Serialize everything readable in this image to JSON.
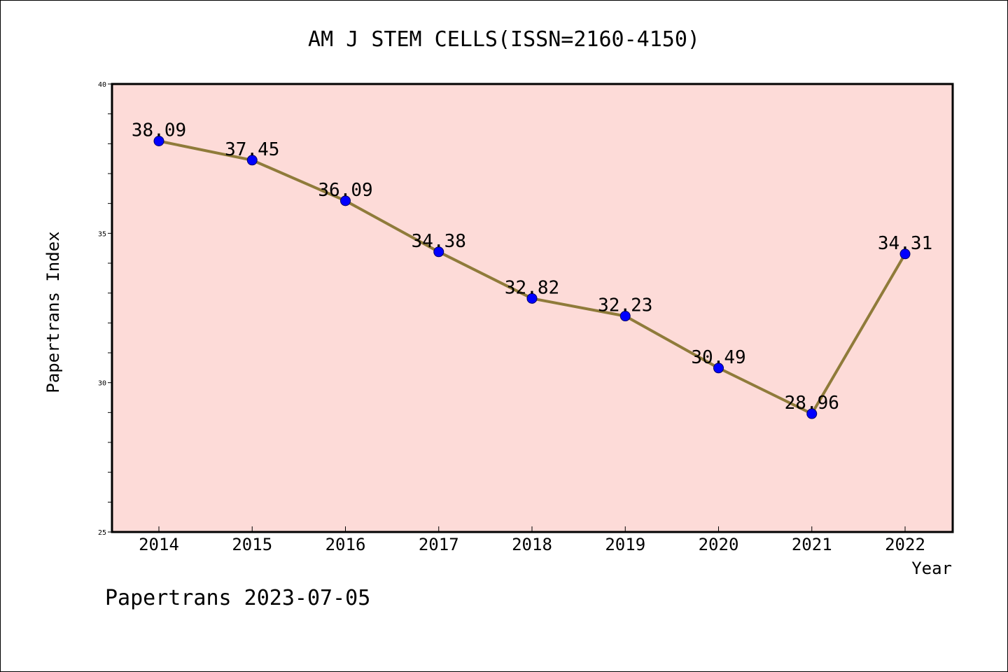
{
  "chart_data": {
    "type": "line",
    "title": "AM J STEM CELLS(ISSN=2160-4150)",
    "xlabel": "Year",
    "ylabel": "Papertrans Index",
    "categories": [
      "2014",
      "2015",
      "2016",
      "2017",
      "2018",
      "2019",
      "2020",
      "2021",
      "2022"
    ],
    "values": [
      38.09,
      37.45,
      36.09,
      34.38,
      32.82,
      32.23,
      30.49,
      28.96,
      34.31
    ],
    "data_labels": [
      "38.09",
      "37.45",
      "36.09",
      "34.38",
      "32.82",
      "32.23",
      "30.49",
      "28.96",
      "34.31"
    ],
    "ylim": [
      25,
      40
    ],
    "y_ticks": [
      "25",
      "30",
      "35",
      "40"
    ],
    "y_minor_step": 1,
    "grid": false,
    "colors": {
      "plot_background": "#fddbd8",
      "line": "#8f7b3a",
      "marker": "#0000ff",
      "marker_edge": "#000066"
    }
  },
  "footer": {
    "text": "Papertrans 2023-07-05"
  }
}
